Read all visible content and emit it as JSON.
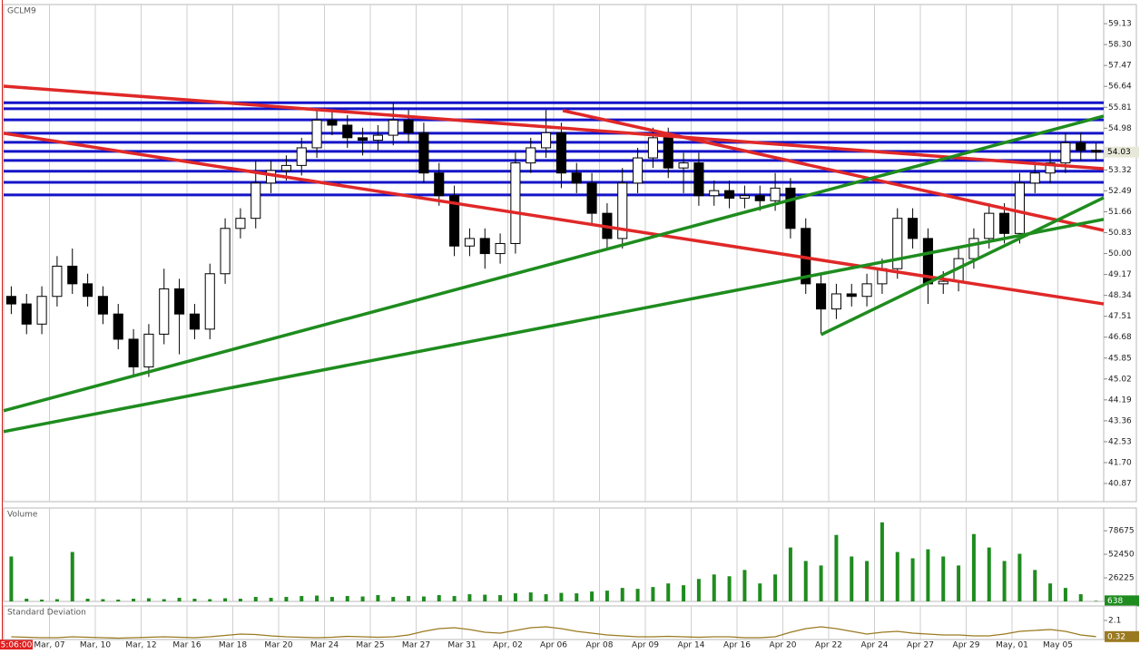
{
  "time_label": "5:06:00",
  "chart_data": [
    {
      "type": "candlestick",
      "title": "GCLM9",
      "xlim": [
        0,
        72
      ],
      "ylim": [
        40.15,
        59.89
      ],
      "up_color": "#ffffff",
      "down_color": "#000000",
      "wick_color": "#000000",
      "open": [
        48.3,
        48.0,
        47.2,
        48.3,
        49.5,
        48.8,
        48.3,
        47.6,
        46.6,
        45.5,
        46.8,
        48.6,
        47.6,
        47.0,
        49.2,
        51.0,
        51.4,
        52.8,
        53.3,
        53.5,
        54.2,
        55.3,
        55.1,
        54.6,
        54.5,
        54.7,
        55.3,
        54.8,
        53.2,
        52.3,
        50.3,
        50.6,
        50.0,
        50.4,
        53.6,
        54.2,
        54.8,
        53.2,
        52.8,
        51.6,
        50.6,
        52.8,
        53.8,
        54.6,
        53.4,
        53.6,
        52.3,
        52.5,
        52.2,
        52.3,
        52.1,
        52.6,
        51.0,
        48.8,
        47.8,
        48.4,
        48.3,
        48.8,
        49.4,
        51.4,
        50.6,
        48.8,
        48.9,
        49.8,
        50.6,
        51.6,
        50.8,
        52.8,
        53.2,
        53.6,
        54.4,
        54.1
      ],
      "high": [
        48.7,
        48.4,
        48.7,
        49.9,
        50.2,
        49.2,
        48.7,
        48.0,
        47.0,
        47.2,
        49.4,
        49.0,
        48.0,
        49.6,
        51.4,
        51.8,
        53.7,
        53.7,
        53.9,
        54.6,
        55.7,
        55.7,
        55.5,
        55.0,
        55.1,
        56.0,
        55.7,
        55.2,
        53.6,
        52.7,
        51.0,
        51.0,
        50.8,
        54.0,
        54.6,
        55.7,
        55.2,
        53.6,
        53.2,
        52.0,
        53.4,
        54.2,
        55.0,
        55.0,
        54.0,
        54.0,
        52.9,
        52.9,
        52.7,
        52.7,
        53.2,
        53.0,
        51.4,
        49.2,
        48.8,
        48.8,
        49.2,
        49.8,
        51.8,
        51.8,
        51.0,
        49.3,
        50.2,
        51.0,
        52.0,
        52.0,
        53.2,
        53.6,
        54.0,
        54.8,
        54.8,
        54.4
      ],
      "low": [
        47.6,
        46.8,
        46.8,
        47.9,
        48.4,
        47.9,
        47.2,
        46.2,
        45.1,
        45.1,
        46.4,
        46.0,
        46.6,
        46.6,
        48.8,
        50.6,
        51.0,
        52.4,
        52.9,
        53.1,
        53.8,
        54.7,
        54.2,
        53.9,
        54.1,
        54.3,
        54.4,
        52.8,
        51.9,
        49.9,
        49.9,
        49.4,
        49.6,
        50.0,
        53.2,
        53.8,
        52.6,
        52.4,
        51.2,
        50.2,
        50.2,
        52.4,
        53.4,
        53.0,
        52.4,
        51.9,
        51.9,
        51.8,
        51.8,
        51.7,
        51.7,
        50.6,
        48.4,
        46.8,
        47.4,
        47.9,
        47.9,
        48.4,
        49.0,
        50.2,
        48.0,
        48.4,
        48.5,
        49.4,
        50.2,
        50.4,
        50.4,
        52.4,
        52.8,
        53.2,
        53.7,
        53.7
      ],
      "close": [
        48.0,
        47.2,
        48.3,
        49.5,
        48.8,
        48.3,
        47.6,
        46.6,
        45.5,
        46.8,
        48.6,
        47.6,
        47.0,
        49.2,
        51.0,
        51.4,
        52.8,
        53.3,
        53.5,
        54.2,
        55.3,
        55.1,
        54.6,
        54.5,
        54.7,
        55.3,
        54.8,
        53.2,
        52.3,
        50.3,
        50.6,
        50.0,
        50.4,
        53.6,
        54.2,
        54.8,
        53.2,
        52.8,
        51.6,
        50.6,
        52.8,
        53.8,
        54.6,
        53.4,
        53.6,
        52.3,
        52.5,
        52.2,
        52.3,
        52.1,
        52.6,
        51.0,
        48.8,
        47.8,
        48.4,
        48.3,
        48.8,
        49.4,
        51.4,
        50.6,
        48.8,
        48.9,
        49.8,
        50.6,
        51.6,
        50.8,
        52.8,
        53.2,
        53.6,
        54.4,
        54.1,
        54.03
      ],
      "yticks": [
        59.13,
        {
          "value": 58.3,
          "label": "58.30"
        },
        57.47,
        56.64,
        55.81,
        54.98,
        53.32,
        52.49,
        51.66,
        50.83,
        {
          "value": 50,
          "label": "50.00"
        },
        49.17,
        48.34,
        47.51,
        46.68,
        45.85,
        45.02,
        44.19,
        43.36,
        42.53,
        {
          "value": 41.7,
          "label": "41.70"
        },
        40.87
      ],
      "levels": {
        "color": "#1414c8",
        "values": [
          55.99,
          55.75,
          55.31,
          54.78,
          54.42,
          54.06,
          53.7,
          53.27,
          52.83,
          52.33
        ]
      },
      "trendlines": [
        {
          "color": "#e02828",
          "x": [
            0,
            72
          ],
          "y": [
            56.65,
            53.37
          ]
        },
        {
          "color": "#e02828",
          "x": [
            0,
            72
          ],
          "y": [
            54.78,
            48.0
          ]
        },
        {
          "color": "#e02828",
          "x": [
            36.6,
            72
          ],
          "y": [
            55.68,
            50.92
          ]
        },
        {
          "color": "#1e8c1e",
          "x": [
            0,
            72
          ],
          "y": [
            43.76,
            55.46
          ]
        },
        {
          "color": "#1e8c1e",
          "x": [
            0,
            72
          ],
          "y": [
            42.93,
            51.36
          ]
        },
        {
          "color": "#1e8c1e",
          "x": [
            53.5,
            72
          ],
          "y": [
            46.78,
            52.22
          ]
        }
      ]
    },
    {
      "type": "bar",
      "title": "Volume",
      "color": "#1e8c1e",
      "xlim": [
        0,
        72
      ],
      "ylim": [
        0,
        104000
      ],
      "values": [
        50000,
        3000,
        2000,
        2500,
        55000,
        3000,
        2500,
        2000,
        3000,
        3500,
        2500,
        4000,
        3000,
        2500,
        3500,
        3000,
        5000,
        4000,
        5000,
        6000,
        6500,
        5000,
        6000,
        5500,
        7000,
        5000,
        6000,
        5500,
        7000,
        6000,
        8000,
        7500,
        7000,
        9000,
        10000,
        8000,
        9500,
        9000,
        11000,
        12000,
        15000,
        14000,
        16000,
        20000,
        18000,
        25000,
        30000,
        28000,
        35000,
        20000,
        30000,
        60000,
        45000,
        40000,
        74000,
        50000,
        45000,
        88000,
        55000,
        48000,
        58000,
        50000,
        40000,
        75000,
        60000,
        45000,
        53000,
        35000,
        20000,
        15000,
        8000,
        638
      ],
      "yticks": [
        78675,
        52450,
        26225
      ]
    },
    {
      "type": "line",
      "title": "Standard Deviation",
      "color": "#9a7a20",
      "xlim": [
        0,
        72
      ],
      "ylim": [
        0,
        3.7
      ],
      "values": [
        0.3,
        0.25,
        0.2,
        0.2,
        0.3,
        0.25,
        0.2,
        0.15,
        0.2,
        0.25,
        0.3,
        0.25,
        0.2,
        0.3,
        0.45,
        0.6,
        0.55,
        0.4,
        0.3,
        0.25,
        0.2,
        0.25,
        0.35,
        0.3,
        0.25,
        0.3,
        0.5,
        0.9,
        1.2,
        1.3,
        1.1,
        0.8,
        0.7,
        1.0,
        1.3,
        1.4,
        1.2,
        0.9,
        0.7,
        0.5,
        0.4,
        0.3,
        0.3,
        0.35,
        0.3,
        0.25,
        0.3,
        0.3,
        0.2,
        0.2,
        0.3,
        0.8,
        1.2,
        1.4,
        1.2,
        0.9,
        0.6,
        0.8,
        0.9,
        0.7,
        0.6,
        0.5,
        0.5,
        0.4,
        0.4,
        0.6,
        0.9,
        1.0,
        1.1,
        0.9,
        0.5,
        0.32
      ],
      "yticks": [
        2.1
      ],
      "xticks": [
        {
          "value": 3,
          "label": "Mar, 07"
        },
        {
          "value": 6,
          "label": "Mar, 10"
        },
        {
          "value": 9,
          "label": "Mar, 12"
        },
        {
          "value": 12,
          "label": "Mar 16"
        },
        {
          "value": 15,
          "label": "Mar 18"
        },
        {
          "value": 18,
          "label": "Mar 20"
        },
        {
          "value": 21,
          "label": "Mar 24"
        },
        {
          "value": 24,
          "label": "Mar 25"
        },
        {
          "value": 27,
          "label": "Mar 27"
        },
        {
          "value": 30,
          "label": "Mar 31"
        },
        {
          "value": 33,
          "label": "Apr, 02"
        },
        {
          "value": 36,
          "label": "Apr 06"
        },
        {
          "value": 39,
          "label": "Apr 08"
        },
        {
          "value": 42,
          "label": "Apr 09"
        },
        {
          "value": 45,
          "label": "Apr 14"
        },
        {
          "value": 48,
          "label": "Apr 16"
        },
        {
          "value": 51,
          "label": "Apr 20"
        },
        {
          "value": 54,
          "label": "Apr 22"
        },
        {
          "value": 57,
          "label": "Apr 24"
        },
        {
          "value": 60,
          "label": "Apr 27"
        },
        {
          "value": 63,
          "label": "Apr 29"
        },
        {
          "value": 66,
          "label": "May, 01"
        },
        {
          "value": 69,
          "label": "May 05"
        }
      ]
    }
  ]
}
